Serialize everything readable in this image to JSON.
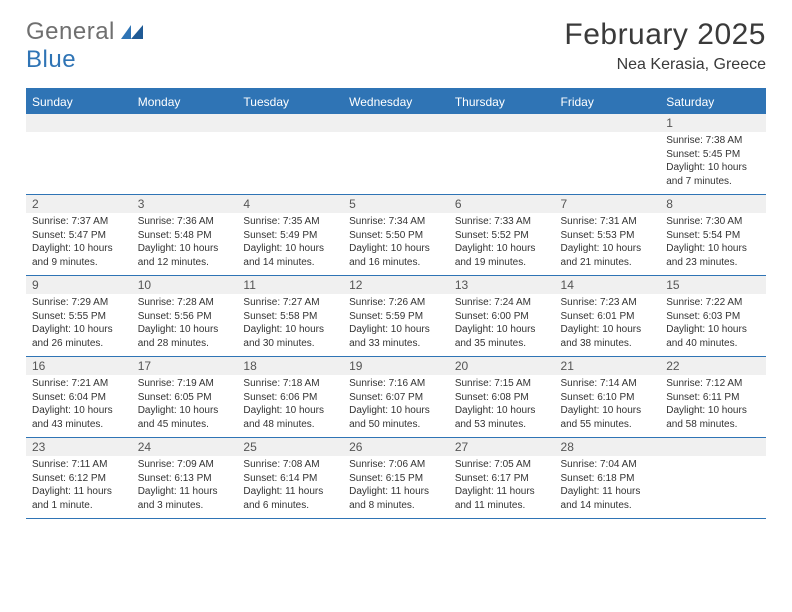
{
  "brand": {
    "text1": "General",
    "text2": "Blue"
  },
  "title": "February 2025",
  "location": "Nea Kerasia, Greece",
  "colors": {
    "header_bg": "#2f74b5",
    "header_text": "#ffffff",
    "band_bg": "#f0f0f0",
    "border": "#2f74b5",
    "text": "#333333",
    "title_text": "#3a3a3a",
    "logo_gray": "#6f6f6f",
    "logo_blue": "#2f74b5"
  },
  "fonts": {
    "title_size_pt": 22,
    "header_size_pt": 9,
    "body_size_pt": 7.5
  },
  "weekday_headers": [
    "Sunday",
    "Monday",
    "Tuesday",
    "Wednesday",
    "Thursday",
    "Friday",
    "Saturday"
  ],
  "weeks": [
    [
      null,
      null,
      null,
      null,
      null,
      null,
      {
        "n": "1",
        "sunrise": "Sunrise: 7:38 AM",
        "sunset": "Sunset: 5:45 PM",
        "day1": "Daylight: 10 hours",
        "day2": "and 7 minutes."
      }
    ],
    [
      {
        "n": "2",
        "sunrise": "Sunrise: 7:37 AM",
        "sunset": "Sunset: 5:47 PM",
        "day1": "Daylight: 10 hours",
        "day2": "and 9 minutes."
      },
      {
        "n": "3",
        "sunrise": "Sunrise: 7:36 AM",
        "sunset": "Sunset: 5:48 PM",
        "day1": "Daylight: 10 hours",
        "day2": "and 12 minutes."
      },
      {
        "n": "4",
        "sunrise": "Sunrise: 7:35 AM",
        "sunset": "Sunset: 5:49 PM",
        "day1": "Daylight: 10 hours",
        "day2": "and 14 minutes."
      },
      {
        "n": "5",
        "sunrise": "Sunrise: 7:34 AM",
        "sunset": "Sunset: 5:50 PM",
        "day1": "Daylight: 10 hours",
        "day2": "and 16 minutes."
      },
      {
        "n": "6",
        "sunrise": "Sunrise: 7:33 AM",
        "sunset": "Sunset: 5:52 PM",
        "day1": "Daylight: 10 hours",
        "day2": "and 19 minutes."
      },
      {
        "n": "7",
        "sunrise": "Sunrise: 7:31 AM",
        "sunset": "Sunset: 5:53 PM",
        "day1": "Daylight: 10 hours",
        "day2": "and 21 minutes."
      },
      {
        "n": "8",
        "sunrise": "Sunrise: 7:30 AM",
        "sunset": "Sunset: 5:54 PM",
        "day1": "Daylight: 10 hours",
        "day2": "and 23 minutes."
      }
    ],
    [
      {
        "n": "9",
        "sunrise": "Sunrise: 7:29 AM",
        "sunset": "Sunset: 5:55 PM",
        "day1": "Daylight: 10 hours",
        "day2": "and 26 minutes."
      },
      {
        "n": "10",
        "sunrise": "Sunrise: 7:28 AM",
        "sunset": "Sunset: 5:56 PM",
        "day1": "Daylight: 10 hours",
        "day2": "and 28 minutes."
      },
      {
        "n": "11",
        "sunrise": "Sunrise: 7:27 AM",
        "sunset": "Sunset: 5:58 PM",
        "day1": "Daylight: 10 hours",
        "day2": "and 30 minutes."
      },
      {
        "n": "12",
        "sunrise": "Sunrise: 7:26 AM",
        "sunset": "Sunset: 5:59 PM",
        "day1": "Daylight: 10 hours",
        "day2": "and 33 minutes."
      },
      {
        "n": "13",
        "sunrise": "Sunrise: 7:24 AM",
        "sunset": "Sunset: 6:00 PM",
        "day1": "Daylight: 10 hours",
        "day2": "and 35 minutes."
      },
      {
        "n": "14",
        "sunrise": "Sunrise: 7:23 AM",
        "sunset": "Sunset: 6:01 PM",
        "day1": "Daylight: 10 hours",
        "day2": "and 38 minutes."
      },
      {
        "n": "15",
        "sunrise": "Sunrise: 7:22 AM",
        "sunset": "Sunset: 6:03 PM",
        "day1": "Daylight: 10 hours",
        "day2": "and 40 minutes."
      }
    ],
    [
      {
        "n": "16",
        "sunrise": "Sunrise: 7:21 AM",
        "sunset": "Sunset: 6:04 PM",
        "day1": "Daylight: 10 hours",
        "day2": "and 43 minutes."
      },
      {
        "n": "17",
        "sunrise": "Sunrise: 7:19 AM",
        "sunset": "Sunset: 6:05 PM",
        "day1": "Daylight: 10 hours",
        "day2": "and 45 minutes."
      },
      {
        "n": "18",
        "sunrise": "Sunrise: 7:18 AM",
        "sunset": "Sunset: 6:06 PM",
        "day1": "Daylight: 10 hours",
        "day2": "and 48 minutes."
      },
      {
        "n": "19",
        "sunrise": "Sunrise: 7:16 AM",
        "sunset": "Sunset: 6:07 PM",
        "day1": "Daylight: 10 hours",
        "day2": "and 50 minutes."
      },
      {
        "n": "20",
        "sunrise": "Sunrise: 7:15 AM",
        "sunset": "Sunset: 6:08 PM",
        "day1": "Daylight: 10 hours",
        "day2": "and 53 minutes."
      },
      {
        "n": "21",
        "sunrise": "Sunrise: 7:14 AM",
        "sunset": "Sunset: 6:10 PM",
        "day1": "Daylight: 10 hours",
        "day2": "and 55 minutes."
      },
      {
        "n": "22",
        "sunrise": "Sunrise: 7:12 AM",
        "sunset": "Sunset: 6:11 PM",
        "day1": "Daylight: 10 hours",
        "day2": "and 58 minutes."
      }
    ],
    [
      {
        "n": "23",
        "sunrise": "Sunrise: 7:11 AM",
        "sunset": "Sunset: 6:12 PM",
        "day1": "Daylight: 11 hours",
        "day2": "and 1 minute."
      },
      {
        "n": "24",
        "sunrise": "Sunrise: 7:09 AM",
        "sunset": "Sunset: 6:13 PM",
        "day1": "Daylight: 11 hours",
        "day2": "and 3 minutes."
      },
      {
        "n": "25",
        "sunrise": "Sunrise: 7:08 AM",
        "sunset": "Sunset: 6:14 PM",
        "day1": "Daylight: 11 hours",
        "day2": "and 6 minutes."
      },
      {
        "n": "26",
        "sunrise": "Sunrise: 7:06 AM",
        "sunset": "Sunset: 6:15 PM",
        "day1": "Daylight: 11 hours",
        "day2": "and 8 minutes."
      },
      {
        "n": "27",
        "sunrise": "Sunrise: 7:05 AM",
        "sunset": "Sunset: 6:17 PM",
        "day1": "Daylight: 11 hours",
        "day2": "and 11 minutes."
      },
      {
        "n": "28",
        "sunrise": "Sunrise: 7:04 AM",
        "sunset": "Sunset: 6:18 PM",
        "day1": "Daylight: 11 hours",
        "day2": "and 14 minutes."
      },
      null
    ]
  ]
}
